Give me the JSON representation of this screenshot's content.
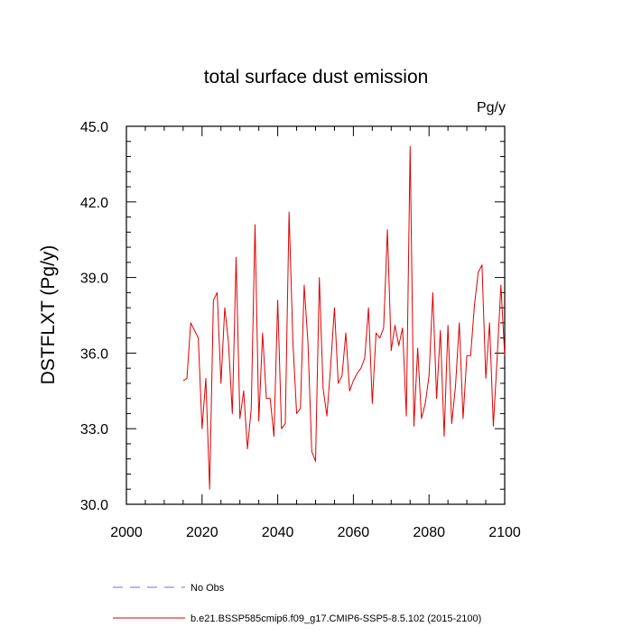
{
  "chart_data": {
    "type": "line",
    "title": "total surface dust emission",
    "units_label": "Pg/y",
    "ylabel": "DSTFLXT  (Pg/y)",
    "xlabel": "",
    "xlim": [
      2000,
      2100
    ],
    "ylim": [
      30.0,
      45.0
    ],
    "x_ticks": [
      2000,
      2020,
      2040,
      2060,
      2080,
      2100
    ],
    "x_tick_labels": [
      "2000",
      "2020",
      "2040",
      "2060",
      "2080",
      "2100"
    ],
    "y_ticks": [
      30.0,
      33.0,
      36.0,
      39.0,
      42.0,
      45.0
    ],
    "y_tick_labels": [
      "30.0",
      "33.0",
      "36.0",
      "39.0",
      "42.0",
      "45.0"
    ],
    "grid": false,
    "legend_position": "bottom-left",
    "series": [
      {
        "name": "b.e21.BSSP585cmip6.f09_g17.CMIP6-SSP5-8.5.102 (2015-2100)",
        "color": "#e00000",
        "style": "solid",
        "x": [
          2015,
          2016,
          2017,
          2018,
          2019,
          2020,
          2021,
          2022,
          2023,
          2024,
          2025,
          2026,
          2027,
          2028,
          2029,
          2030,
          2031,
          2032,
          2033,
          2034,
          2035,
          2036,
          2037,
          2038,
          2039,
          2040,
          2041,
          2042,
          2043,
          2044,
          2045,
          2046,
          2047,
          2048,
          2049,
          2050,
          2051,
          2052,
          2053,
          2054,
          2055,
          2056,
          2057,
          2058,
          2059,
          2060,
          2061,
          2062,
          2063,
          2064,
          2065,
          2066,
          2067,
          2068,
          2069,
          2070,
          2071,
          2072,
          2073,
          2074,
          2075,
          2076,
          2077,
          2078,
          2079,
          2080,
          2081,
          2082,
          2083,
          2084,
          2085,
          2086,
          2087,
          2088,
          2089,
          2090,
          2091,
          2092,
          2093,
          2094,
          2095,
          2096,
          2097,
          2098,
          2099,
          2100
        ],
        "values": [
          34.9,
          35.0,
          37.2,
          36.9,
          36.6,
          33.0,
          35.0,
          30.6,
          38.1,
          38.4,
          34.8,
          37.8,
          36.4,
          33.6,
          39.8,
          33.4,
          34.5,
          32.2,
          33.8,
          41.1,
          33.3,
          36.8,
          34.2,
          34.2,
          32.7,
          38.1,
          33.0,
          33.2,
          41.6,
          36.5,
          33.6,
          33.8,
          38.7,
          36.4,
          32.1,
          31.7,
          39.0,
          34.6,
          33.5,
          35.5,
          37.8,
          34.8,
          35.1,
          36.8,
          34.5,
          34.9,
          35.2,
          35.4,
          35.8,
          37.8,
          34.0,
          36.8,
          36.6,
          37.0,
          40.9,
          36.1,
          37.1,
          36.3,
          37.0,
          33.5,
          44.2,
          33.1,
          36.2,
          33.4,
          34.0,
          35.1,
          38.4,
          34.2,
          36.9,
          32.7,
          37.1,
          33.2,
          34.7,
          37.2,
          33.4,
          35.9,
          35.9,
          37.9,
          39.2,
          39.5,
          35.0,
          37.2,
          33.1,
          35.8,
          38.7,
          35.9
        ]
      }
    ]
  },
  "legend": {
    "entries": [
      {
        "label": "No Obs",
        "color": "#6b6bff",
        "style": "dashed"
      },
      {
        "label": "b.e21.BSSP585cmip6.f09_g17.CMIP6-SSP5-8.5.102 (2015-2100)",
        "color": "#e00000",
        "style": "solid"
      }
    ]
  }
}
